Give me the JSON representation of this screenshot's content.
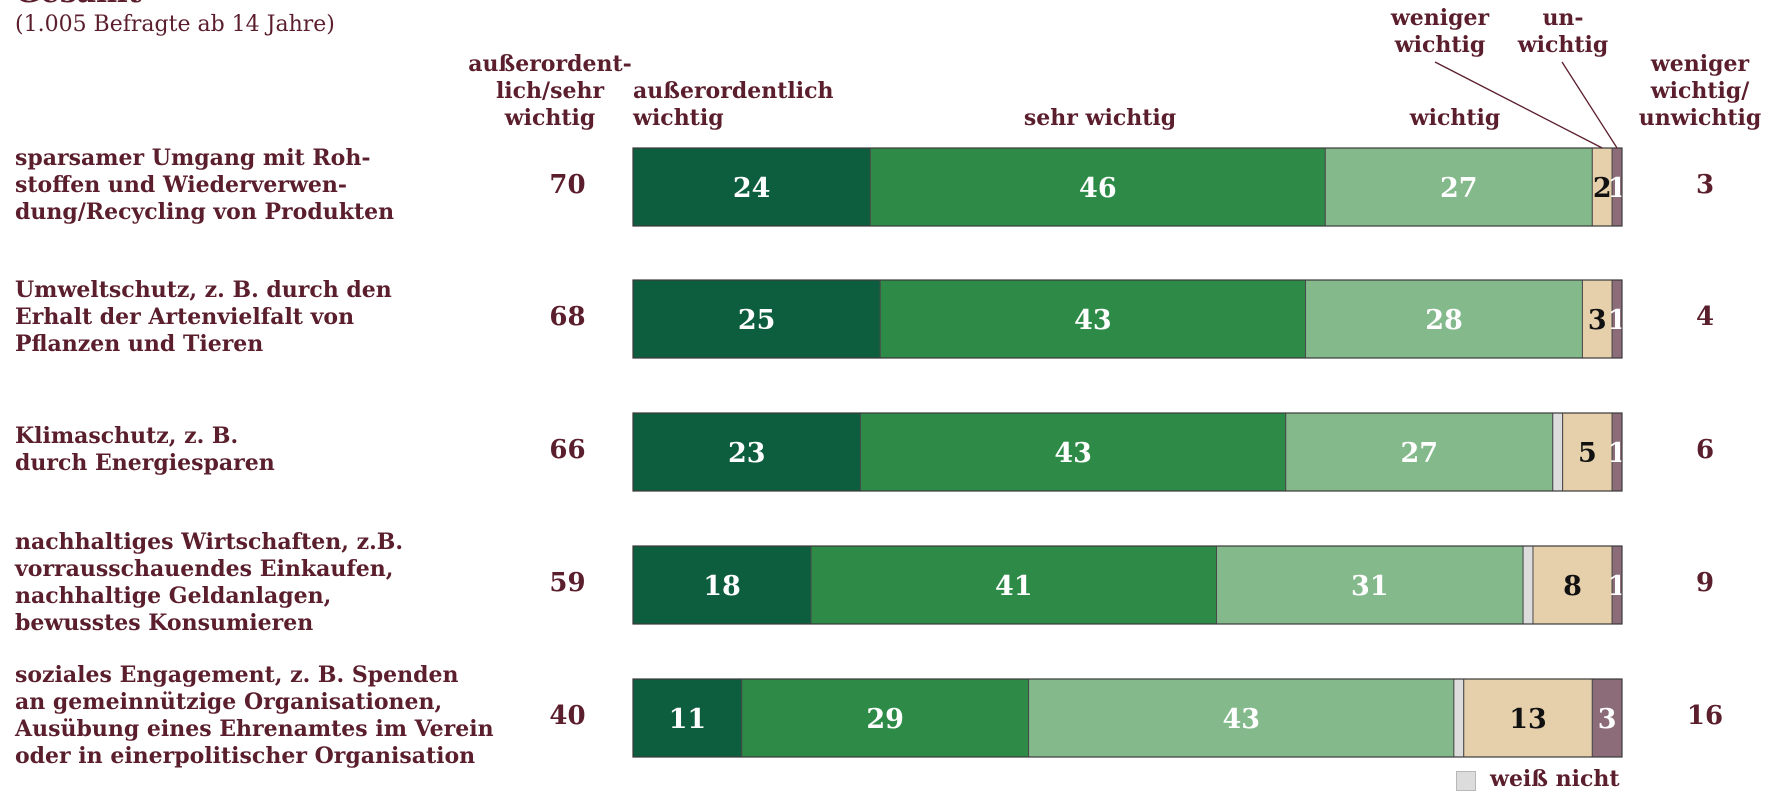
{
  "title": "Gesamt",
  "subtitle": "(1.005 Befragte ab 14 Jahre)",
  "headers": {
    "top_box": "außerordent-\nlich/sehr\nwichtig",
    "ausserordentlich": "außerordentlich\nwichtig",
    "sehr": "sehr wichtig",
    "wichtig": "wichtig",
    "weniger": "weniger\nwichtig",
    "unwichtig": "un-\nwichtig",
    "bottom_box": "weniger\nwichtig/\nunwichtig"
  },
  "legend": {
    "weiss_nicht": "weiß nicht"
  },
  "colors": {
    "ausserordentlich": "#0d5e3e",
    "sehr": "#2e8b47",
    "wichtig": "#84b98c",
    "weiss_nicht": "#dcdcdc",
    "weniger": "#e6cfab",
    "unwichtig": "#8c6c78",
    "text": "#5a1e2c"
  },
  "chart_data": {
    "type": "bar",
    "orientation": "horizontal",
    "stacked": true,
    "categories": [
      "sparsamer Umgang mit Roh-\nstoffen und Wiederverwen-\ndung/Recycling von Produkten",
      "Umweltschutz, z. B. durch den\nErhalt der Artenvielfalt von\nPflanzen und Tieren",
      "Klimaschutz, z. B.\ndurch Energiesparen",
      "nachhaltiges Wirtschaften, z.B.\nvorrausschauendes Einkaufen,\nnachhaltige Geldanlagen,\nbewusstes Konsumieren",
      "soziales Engagement, z. B. Spenden\nan gemeinnützige Organisationen,\nAusübung eines Ehrenamtes im Verein\noder in einerpolitischer Organisation"
    ],
    "series": [
      {
        "name": "außerordentlich wichtig",
        "key": "ausserordentlich",
        "values": [
          24,
          25,
          23,
          18,
          11
        ]
      },
      {
        "name": "sehr wichtig",
        "key": "sehr",
        "values": [
          46,
          43,
          43,
          41,
          29
        ]
      },
      {
        "name": "wichtig",
        "key": "wichtig",
        "values": [
          27,
          28,
          27,
          31,
          43
        ]
      },
      {
        "name": "weiß nicht",
        "key": "weiss_nicht",
        "values": [
          0,
          0,
          1,
          1,
          1
        ]
      },
      {
        "name": "weniger wichtig",
        "key": "weniger",
        "values": [
          2,
          3,
          5,
          8,
          13
        ]
      },
      {
        "name": "unwichtig",
        "key": "unwichtig",
        "values": [
          1,
          1,
          1,
          1,
          3
        ]
      }
    ],
    "top_box_values": [
      70,
      68,
      66,
      59,
      40
    ],
    "bottom_box_values": [
      3,
      4,
      6,
      9,
      16
    ],
    "xlim": [
      0,
      100
    ],
    "grid": false,
    "legend": "bottom-right"
  }
}
